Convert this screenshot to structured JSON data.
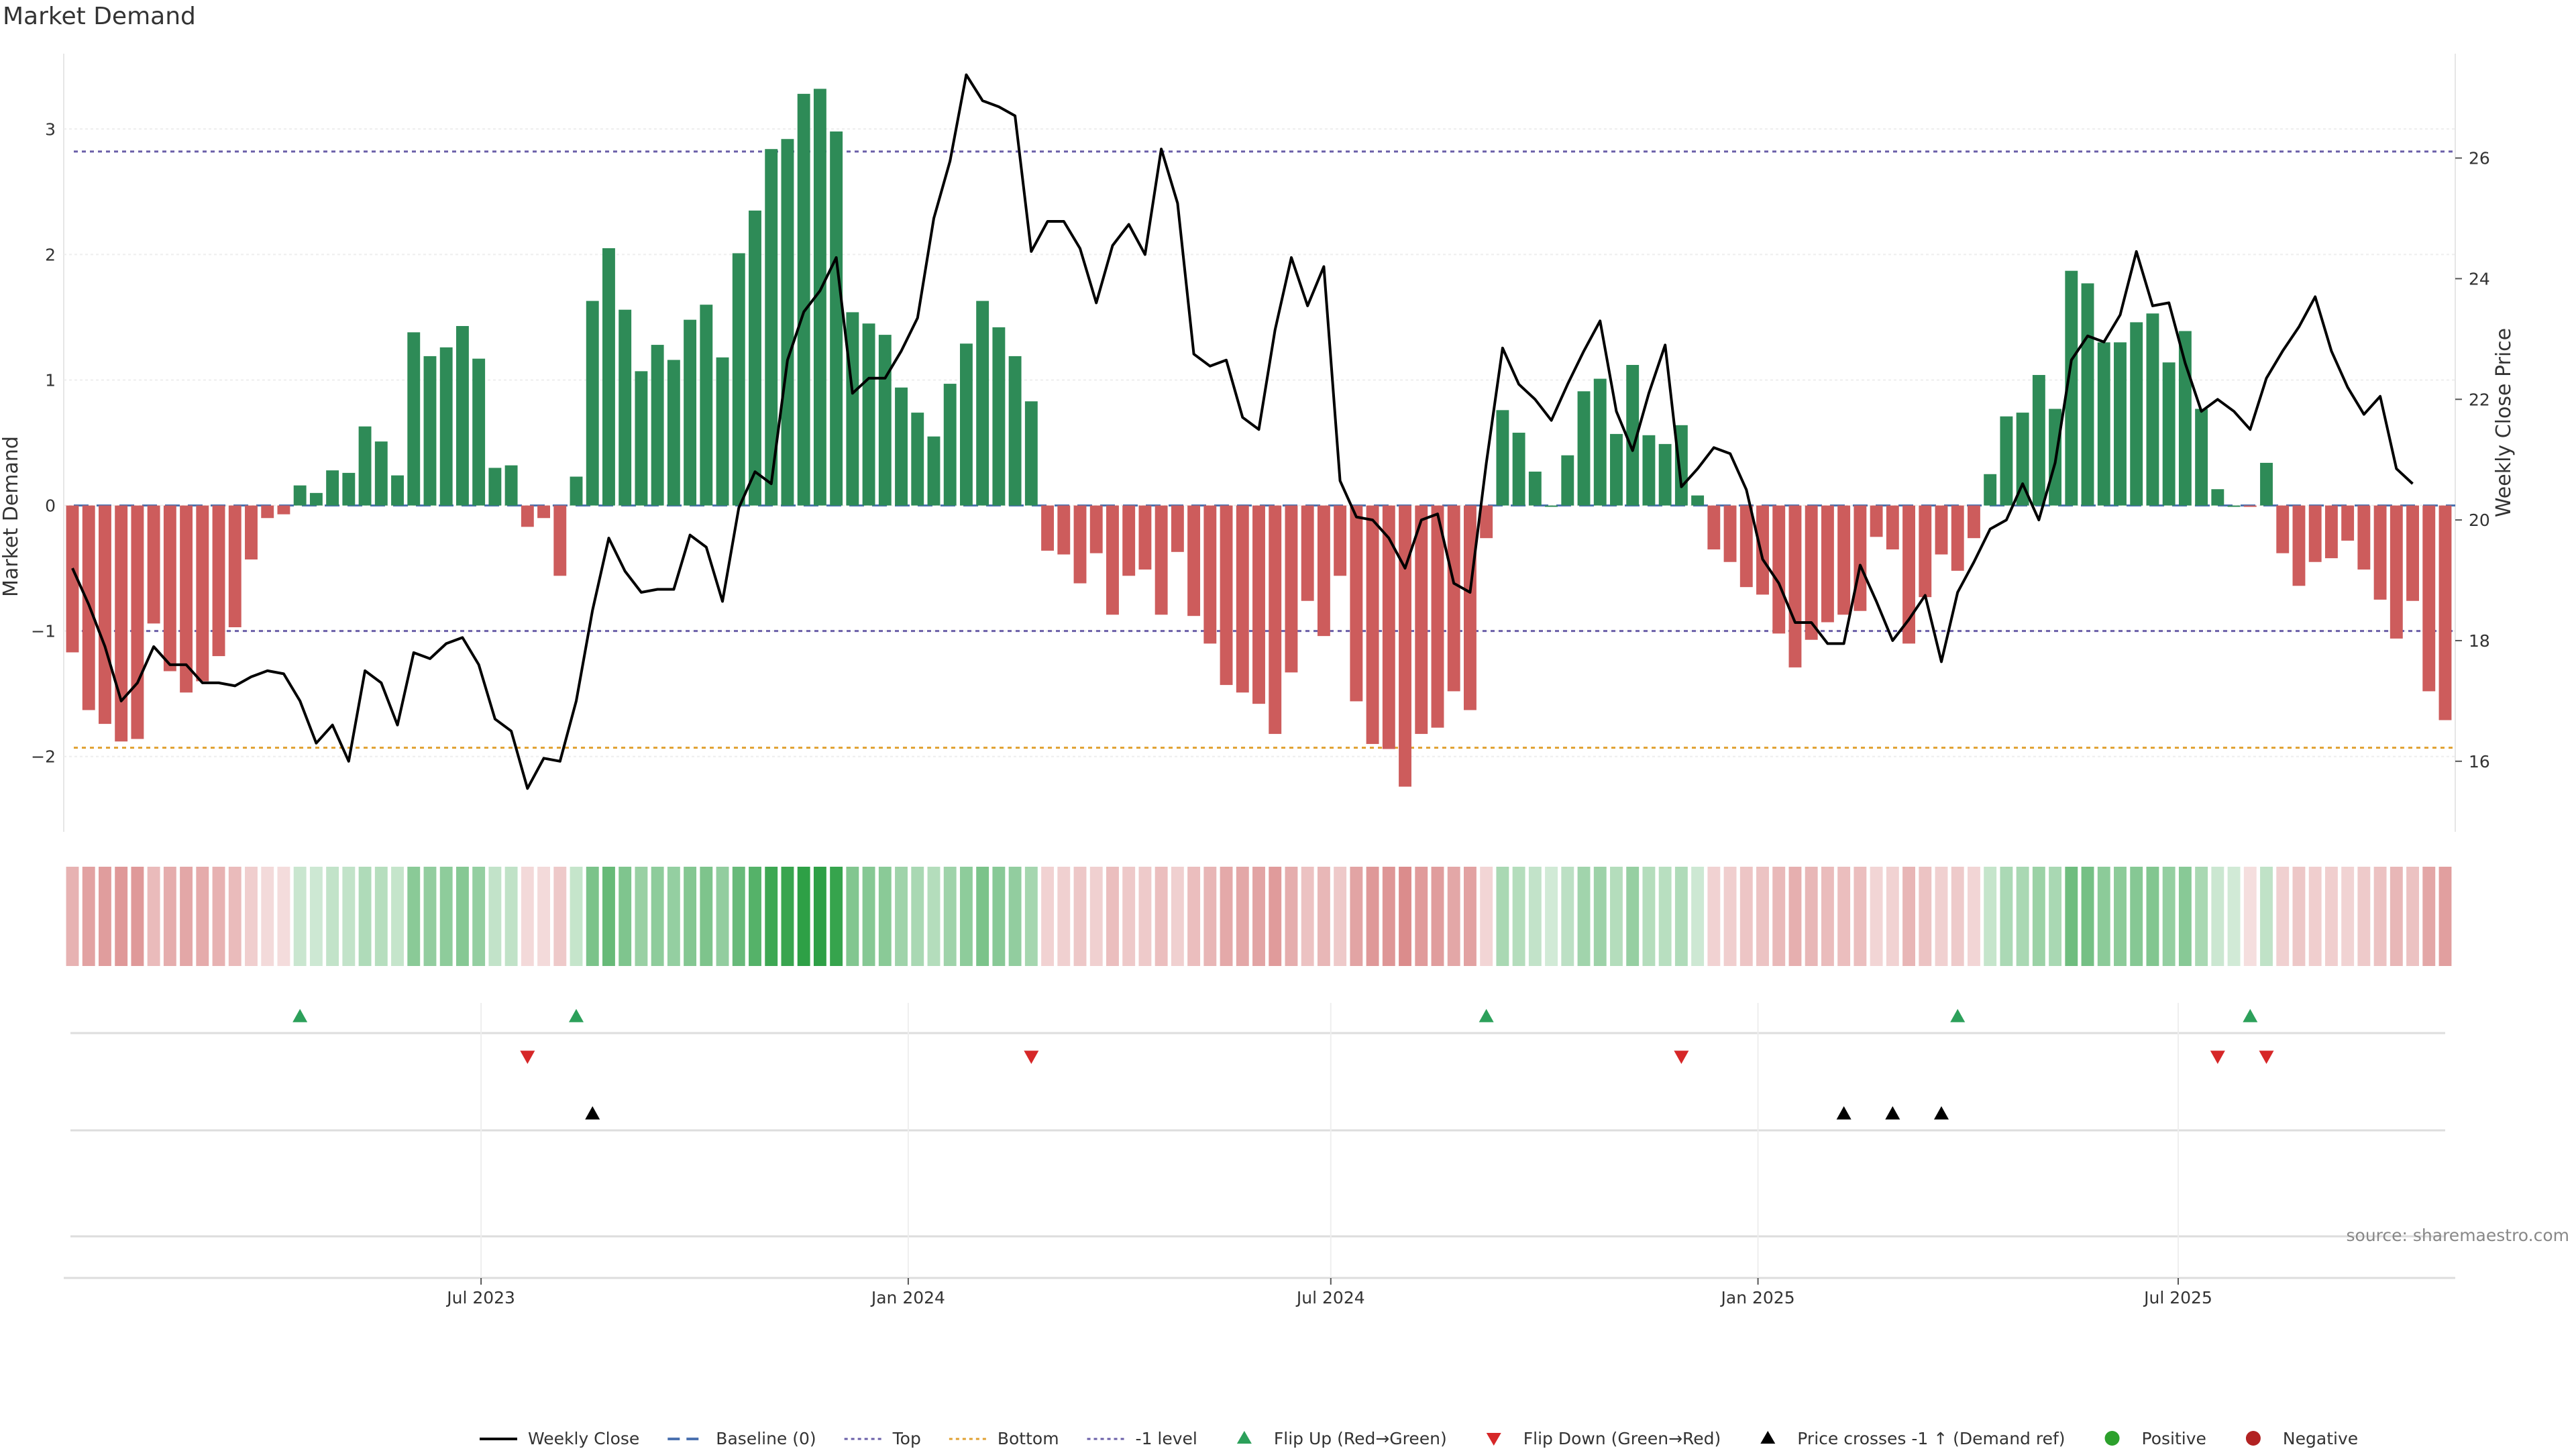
{
  "chart_data": {
    "type": "bar+line",
    "title": "Market Demand",
    "left_axis": {
      "label": "Market Demand",
      "ticks": [
        -2,
        -1,
        0,
        1,
        2,
        3
      ],
      "range": [
        -2.6,
        3.6
      ]
    },
    "right_axis": {
      "label": "Weekly Close Price",
      "ticks": [
        16,
        18,
        20,
        22,
        24,
        26
      ],
      "range": [
        14.83,
        27.73
      ]
    },
    "x_axis": {
      "start": "2023-01-06",
      "end": "2025-10-24",
      "ticks": [
        {
          "label": "Jul 2023",
          "date": "2023-07-01"
        },
        {
          "label": "Jan 2024",
          "date": "2024-01-01"
        },
        {
          "label": "Jul 2024",
          "date": "2024-07-01"
        },
        {
          "label": "Jan 2025",
          "date": "2025-01-01"
        },
        {
          "label": "Jul 2025",
          "date": "2025-07-01"
        }
      ]
    },
    "reference_lines": {
      "top": 2.82,
      "bottom": -1.93,
      "minus_one": -1,
      "baseline": 0
    },
    "demand": [
      -1.17,
      -1.63,
      -1.74,
      -1.88,
      -1.86,
      -0.94,
      -1.32,
      -1.49,
      -1.4,
      -1.2,
      -0.97,
      -0.43,
      -0.1,
      -0.07,
      0.16,
      0.1,
      0.28,
      0.26,
      0.63,
      0.51,
      0.24,
      1.38,
      1.19,
      1.26,
      1.43,
      1.17,
      0.3,
      0.32,
      -0.17,
      -0.1,
      -0.56,
      0.23,
      1.63,
      2.05,
      1.56,
      1.07,
      1.28,
      1.16,
      1.48,
      1.6,
      1.18,
      2.01,
      2.35,
      2.84,
      2.92,
      3.28,
      3.32,
      2.98,
      1.54,
      1.45,
      1.36,
      0.94,
      0.74,
      0.55,
      0.97,
      1.29,
      1.63,
      1.42,
      1.19,
      0.83,
      -0.36,
      -0.39,
      -0.62,
      -0.38,
      -0.87,
      -0.56,
      -0.51,
      -0.87,
      -0.37,
      -0.88,
      -1.1,
      -1.43,
      -1.49,
      -1.58,
      -1.82,
      -1.33,
      -0.76,
      -1.04,
      -0.56,
      -1.56,
      -1.9,
      -1.94,
      -2.24,
      -1.82,
      -1.77,
      -1.48,
      -1.63,
      -0.26,
      0.76,
      0.58,
      0.27,
      0.0,
      0.4,
      0.91,
      1.01,
      0.57,
      1.12,
      0.56,
      0.49,
      0.64,
      0.08,
      -0.35,
      -0.45,
      -0.65,
      -0.71,
      -1.02,
      -1.29,
      -1.07,
      -0.93,
      -0.87,
      -0.84,
      -0.25,
      -0.35,
      -1.1,
      -0.73,
      -0.39,
      -0.52,
      -0.26,
      0.25,
      0.71,
      0.74,
      1.04,
      0.77,
      1.87,
      1.77,
      1.3,
      1.3,
      1.46,
      1.53,
      1.14,
      1.39,
      0.77,
      0.13,
      0.0,
      -0.01,
      0.34,
      -0.38,
      -0.64,
      -0.45,
      -0.42,
      -0.28,
      -0.51,
      -0.75,
      -1.06,
      -0.76,
      -1.48,
      -1.71
    ],
    "weekly_close": [
      19.2,
      18.6,
      17.9,
      17.0,
      17.3,
      17.9,
      17.6,
      17.6,
      17.3,
      17.3,
      17.25,
      17.4,
      17.5,
      17.45,
      17.0,
      16.3,
      16.6,
      16.0,
      17.5,
      17.3,
      16.6,
      17.8,
      17.7,
      17.95,
      18.05,
      17.6,
      16.7,
      16.5,
      15.55,
      16.05,
      16.0,
      17.0,
      18.5,
      19.7,
      19.15,
      18.8,
      18.85,
      18.85,
      19.75,
      19.55,
      18.65,
      20.2,
      20.8,
      20.6,
      22.65,
      23.45,
      23.8,
      24.35,
      22.1,
      22.35,
      22.35,
      22.8,
      23.35,
      25.0,
      25.95,
      27.38,
      26.95,
      26.85,
      26.7,
      24.45,
      24.95,
      24.95,
      24.5,
      23.6,
      24.55,
      24.9,
      24.4,
      26.15,
      25.25,
      22.75,
      22.55,
      22.65,
      21.7,
      21.5,
      23.15,
      24.35,
      23.55,
      24.2,
      20.65,
      20.05,
      20.0,
      19.7,
      19.2,
      20.0,
      20.1,
      18.95,
      18.8,
      20.95,
      22.85,
      22.25,
      22.0,
      21.65,
      22.25,
      22.8,
      23.3,
      21.8,
      21.15,
      22.1,
      22.9,
      20.55,
      20.85,
      21.2,
      21.1,
      20.5,
      19.35,
      18.95,
      18.3,
      18.3,
      17.95,
      17.95,
      19.25,
      18.65,
      18.0,
      18.35,
      18.75,
      17.65,
      18.8,
      19.3,
      19.85,
      20.0,
      20.6,
      20.0,
      20.95,
      22.65,
      23.05,
      22.95,
      23.4,
      24.45,
      23.55,
      23.6,
      22.6,
      21.8,
      22.0,
      21.8,
      21.5,
      22.35,
      22.8,
      23.2,
      23.7,
      22.8,
      22.2,
      21.75,
      22.05,
      20.85,
      20.6
    ],
    "flip_up_weeks": [
      14,
      31,
      87,
      116,
      134
    ],
    "flip_down_weeks": [
      28,
      59,
      99,
      132,
      135
    ],
    "price_crosses_weeks": [
      32,
      109,
      112,
      115
    ],
    "legend": [
      {
        "label": "Weekly Close",
        "kind": "line",
        "color": "#000000"
      },
      {
        "label": "Baseline (0)",
        "kind": "dash",
        "color": "#4c72b0"
      },
      {
        "label": "Top",
        "kind": "dot",
        "color": "#6a5fa8"
      },
      {
        "label": "Bottom",
        "kind": "dot",
        "color": "#e0a030"
      },
      {
        "label": "-1 level",
        "kind": "dot",
        "color": "#6a5fa8"
      },
      {
        "label": "Flip Up (Red→Green)",
        "kind": "tri-up",
        "color": "#2ca05a"
      },
      {
        "label": "Flip Down (Green→Red)",
        "kind": "tri-down",
        "color": "#d62728"
      },
      {
        "label": "Price crosses -1 ↑ (Demand ref)",
        "kind": "tri-up",
        "color": "#000000"
      },
      {
        "label": "Positive",
        "kind": "circle",
        "color": "#2ca02c"
      },
      {
        "label": "Negative",
        "kind": "circle",
        "color": "#b22222"
      }
    ],
    "source": "source: sharemaestro.com",
    "colors": {
      "positive_bar": "#2e8b57",
      "negative_bar": "#cd5c5c",
      "close_line": "#000000"
    }
  }
}
